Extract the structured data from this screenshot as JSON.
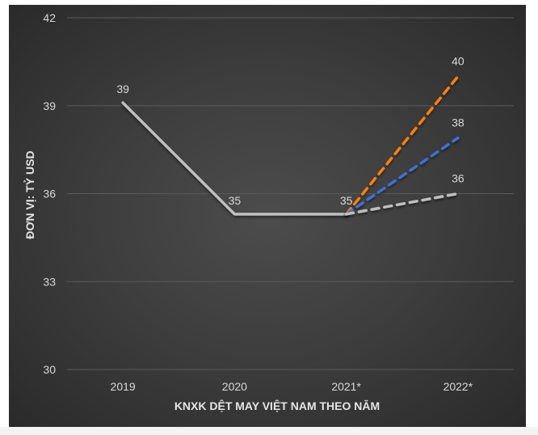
{
  "chart_data": {
    "type": "line",
    "title": "",
    "xlabel": "KNXK DỆT MAY VIỆT NAM THEO NĂM",
    "ylabel": "ĐƠN VỊ: TỶ USD",
    "categories": [
      "2019",
      "2020",
      "2021*",
      "2022*"
    ],
    "ylim": [
      30,
      42
    ],
    "yticks": [
      "30",
      "33",
      "36",
      "39",
      "42"
    ],
    "grid": true,
    "legend": "none",
    "series": [
      {
        "name": "actual",
        "style": "solid",
        "color": "#bfbfbf",
        "values": [
          39.1,
          35.3,
          35.3,
          null
        ],
        "labels": [
          "39",
          "35",
          "35",
          ""
        ]
      },
      {
        "name": "scenario-high",
        "style": "dashed",
        "color": "#ff7f0e",
        "values": [
          null,
          null,
          35.3,
          40
        ],
        "labels": [
          "",
          "",
          "",
          "40"
        ]
      },
      {
        "name": "scenario-mid",
        "style": "dashed",
        "color": "#3d72d6",
        "values": [
          null,
          null,
          35.3,
          37.9
        ],
        "labels": [
          "",
          "",
          "",
          "38"
        ]
      },
      {
        "name": "scenario-low",
        "style": "dashed",
        "color": "#bfbfbf",
        "values": [
          null,
          null,
          35.3,
          36
        ],
        "labels": [
          "",
          "",
          "",
          "36"
        ]
      }
    ]
  }
}
